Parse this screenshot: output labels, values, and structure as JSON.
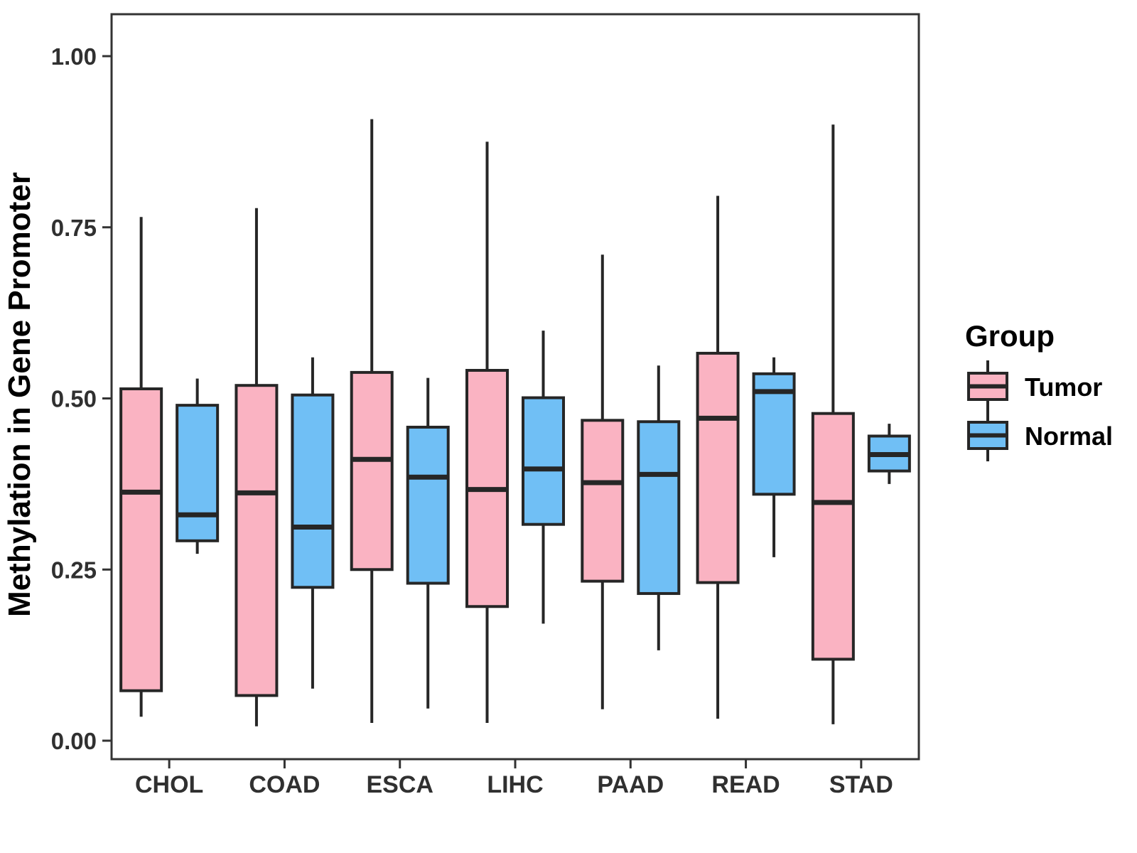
{
  "figure": {
    "background": "#ffffff",
    "panel_border_color": "#333333",
    "axis_text_color": "#303030",
    "axis_title_color": "#000000",
    "mark_stroke_color": "#262626"
  },
  "chart_data": {
    "type": "boxplot",
    "orientation": "vertical",
    "title": "",
    "xlabel": "",
    "ylabel": "Methylation in Gene Promoter",
    "grid": "off",
    "legend_position": "right",
    "ylim": [
      -0.03,
      1.06
    ],
    "yticks": [
      "0.00",
      "0.25",
      "0.50",
      "0.75",
      "1.00"
    ],
    "categories": [
      "CHOL",
      "COAD",
      "ESCA",
      "LIHC",
      "PAAD",
      "READ",
      "STAD"
    ],
    "legend": {
      "title": "Group",
      "entries": [
        {
          "label": "Tumor",
          "color": "#FAB3C2"
        },
        {
          "label": "Normal",
          "color": "#70BFF5"
        }
      ]
    },
    "series": [
      {
        "name": "Tumor",
        "fill": "#FAB3C2",
        "boxes": [
          {
            "category": "CHOL",
            "whisker_low": 0.035,
            "q1": 0.073,
            "median": 0.363,
            "q3": 0.514,
            "whisker_high": 0.765
          },
          {
            "category": "COAD",
            "whisker_low": 0.021,
            "q1": 0.066,
            "median": 0.362,
            "q3": 0.519,
            "whisker_high": 0.778
          },
          {
            "category": "ESCA",
            "whisker_low": 0.026,
            "q1": 0.25,
            "median": 0.411,
            "q3": 0.538,
            "whisker_high": 0.908
          },
          {
            "category": "LIHC",
            "whisker_low": 0.026,
            "q1": 0.196,
            "median": 0.367,
            "q3": 0.541,
            "whisker_high": 0.875
          },
          {
            "category": "PAAD",
            "whisker_low": 0.046,
            "q1": 0.233,
            "median": 0.377,
            "q3": 0.468,
            "whisker_high": 0.71
          },
          {
            "category": "READ",
            "whisker_low": 0.032,
            "q1": 0.231,
            "median": 0.471,
            "q3": 0.566,
            "whisker_high": 0.796
          },
          {
            "category": "STAD",
            "whisker_low": 0.024,
            "q1": 0.119,
            "median": 0.348,
            "q3": 0.478,
            "whisker_high": 0.9
          }
        ]
      },
      {
        "name": "Normal",
        "fill": "#70BFF5",
        "boxes": [
          {
            "category": "CHOL",
            "whisker_low": 0.273,
            "q1": 0.292,
            "median": 0.33,
            "q3": 0.49,
            "whisker_high": 0.529
          },
          {
            "category": "COAD",
            "whisker_low": 0.076,
            "q1": 0.224,
            "median": 0.312,
            "q3": 0.505,
            "whisker_high": 0.56
          },
          {
            "category": "ESCA",
            "whisker_low": 0.047,
            "q1": 0.23,
            "median": 0.385,
            "q3": 0.458,
            "whisker_high": 0.53
          },
          {
            "category": "LIHC",
            "whisker_low": 0.171,
            "q1": 0.316,
            "median": 0.397,
            "q3": 0.501,
            "whisker_high": 0.599
          },
          {
            "category": "PAAD",
            "whisker_low": 0.132,
            "q1": 0.215,
            "median": 0.389,
            "q3": 0.466,
            "whisker_high": 0.548
          },
          {
            "category": "READ",
            "whisker_low": 0.268,
            "q1": 0.36,
            "median": 0.51,
            "q3": 0.536,
            "whisker_high": 0.56
          },
          {
            "category": "STAD",
            "whisker_low": 0.375,
            "q1": 0.394,
            "median": 0.418,
            "q3": 0.445,
            "whisker_high": 0.463
          }
        ]
      }
    ]
  }
}
